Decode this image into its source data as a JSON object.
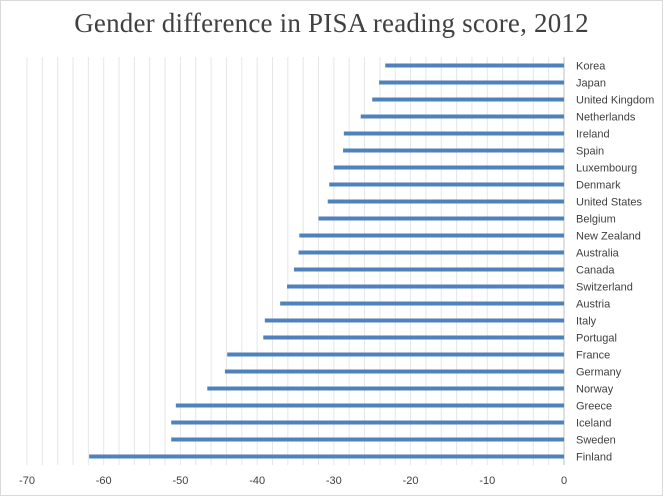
{
  "chart_data": {
    "type": "bar",
    "orientation": "horizontal",
    "title": "Gender difference in PISA reading score, 2012",
    "categories": [
      "Korea",
      "Japan",
      "United Kingdom",
      "Netherlands",
      "Ireland",
      "Spain",
      "Luxembourg",
      "Denmark",
      "United States",
      "Belgium",
      "New Zealand",
      "Australia",
      "Canada",
      "Switzerland",
      "Austria",
      "Italy",
      "Portugal",
      "France",
      "Germany",
      "Norway",
      "Greece",
      "Iceland",
      "Sweden",
      "Finland"
    ],
    "values": [
      -23.3,
      -24.1,
      -25.0,
      -26.5,
      -28.7,
      -28.8,
      -30.0,
      -30.6,
      -30.8,
      -32.0,
      -34.5,
      -34.6,
      -35.2,
      -36.1,
      -37.0,
      -39.0,
      -39.2,
      -43.9,
      -44.2,
      -46.5,
      -50.6,
      -51.2,
      -51.2,
      -61.9
    ],
    "xlim": [
      -70,
      0
    ],
    "xticks": [
      -70,
      -60,
      -50,
      -40,
      -30,
      -20,
      -10,
      0
    ],
    "grid": true,
    "legend": "none",
    "bar_color": "#4f81bd"
  }
}
